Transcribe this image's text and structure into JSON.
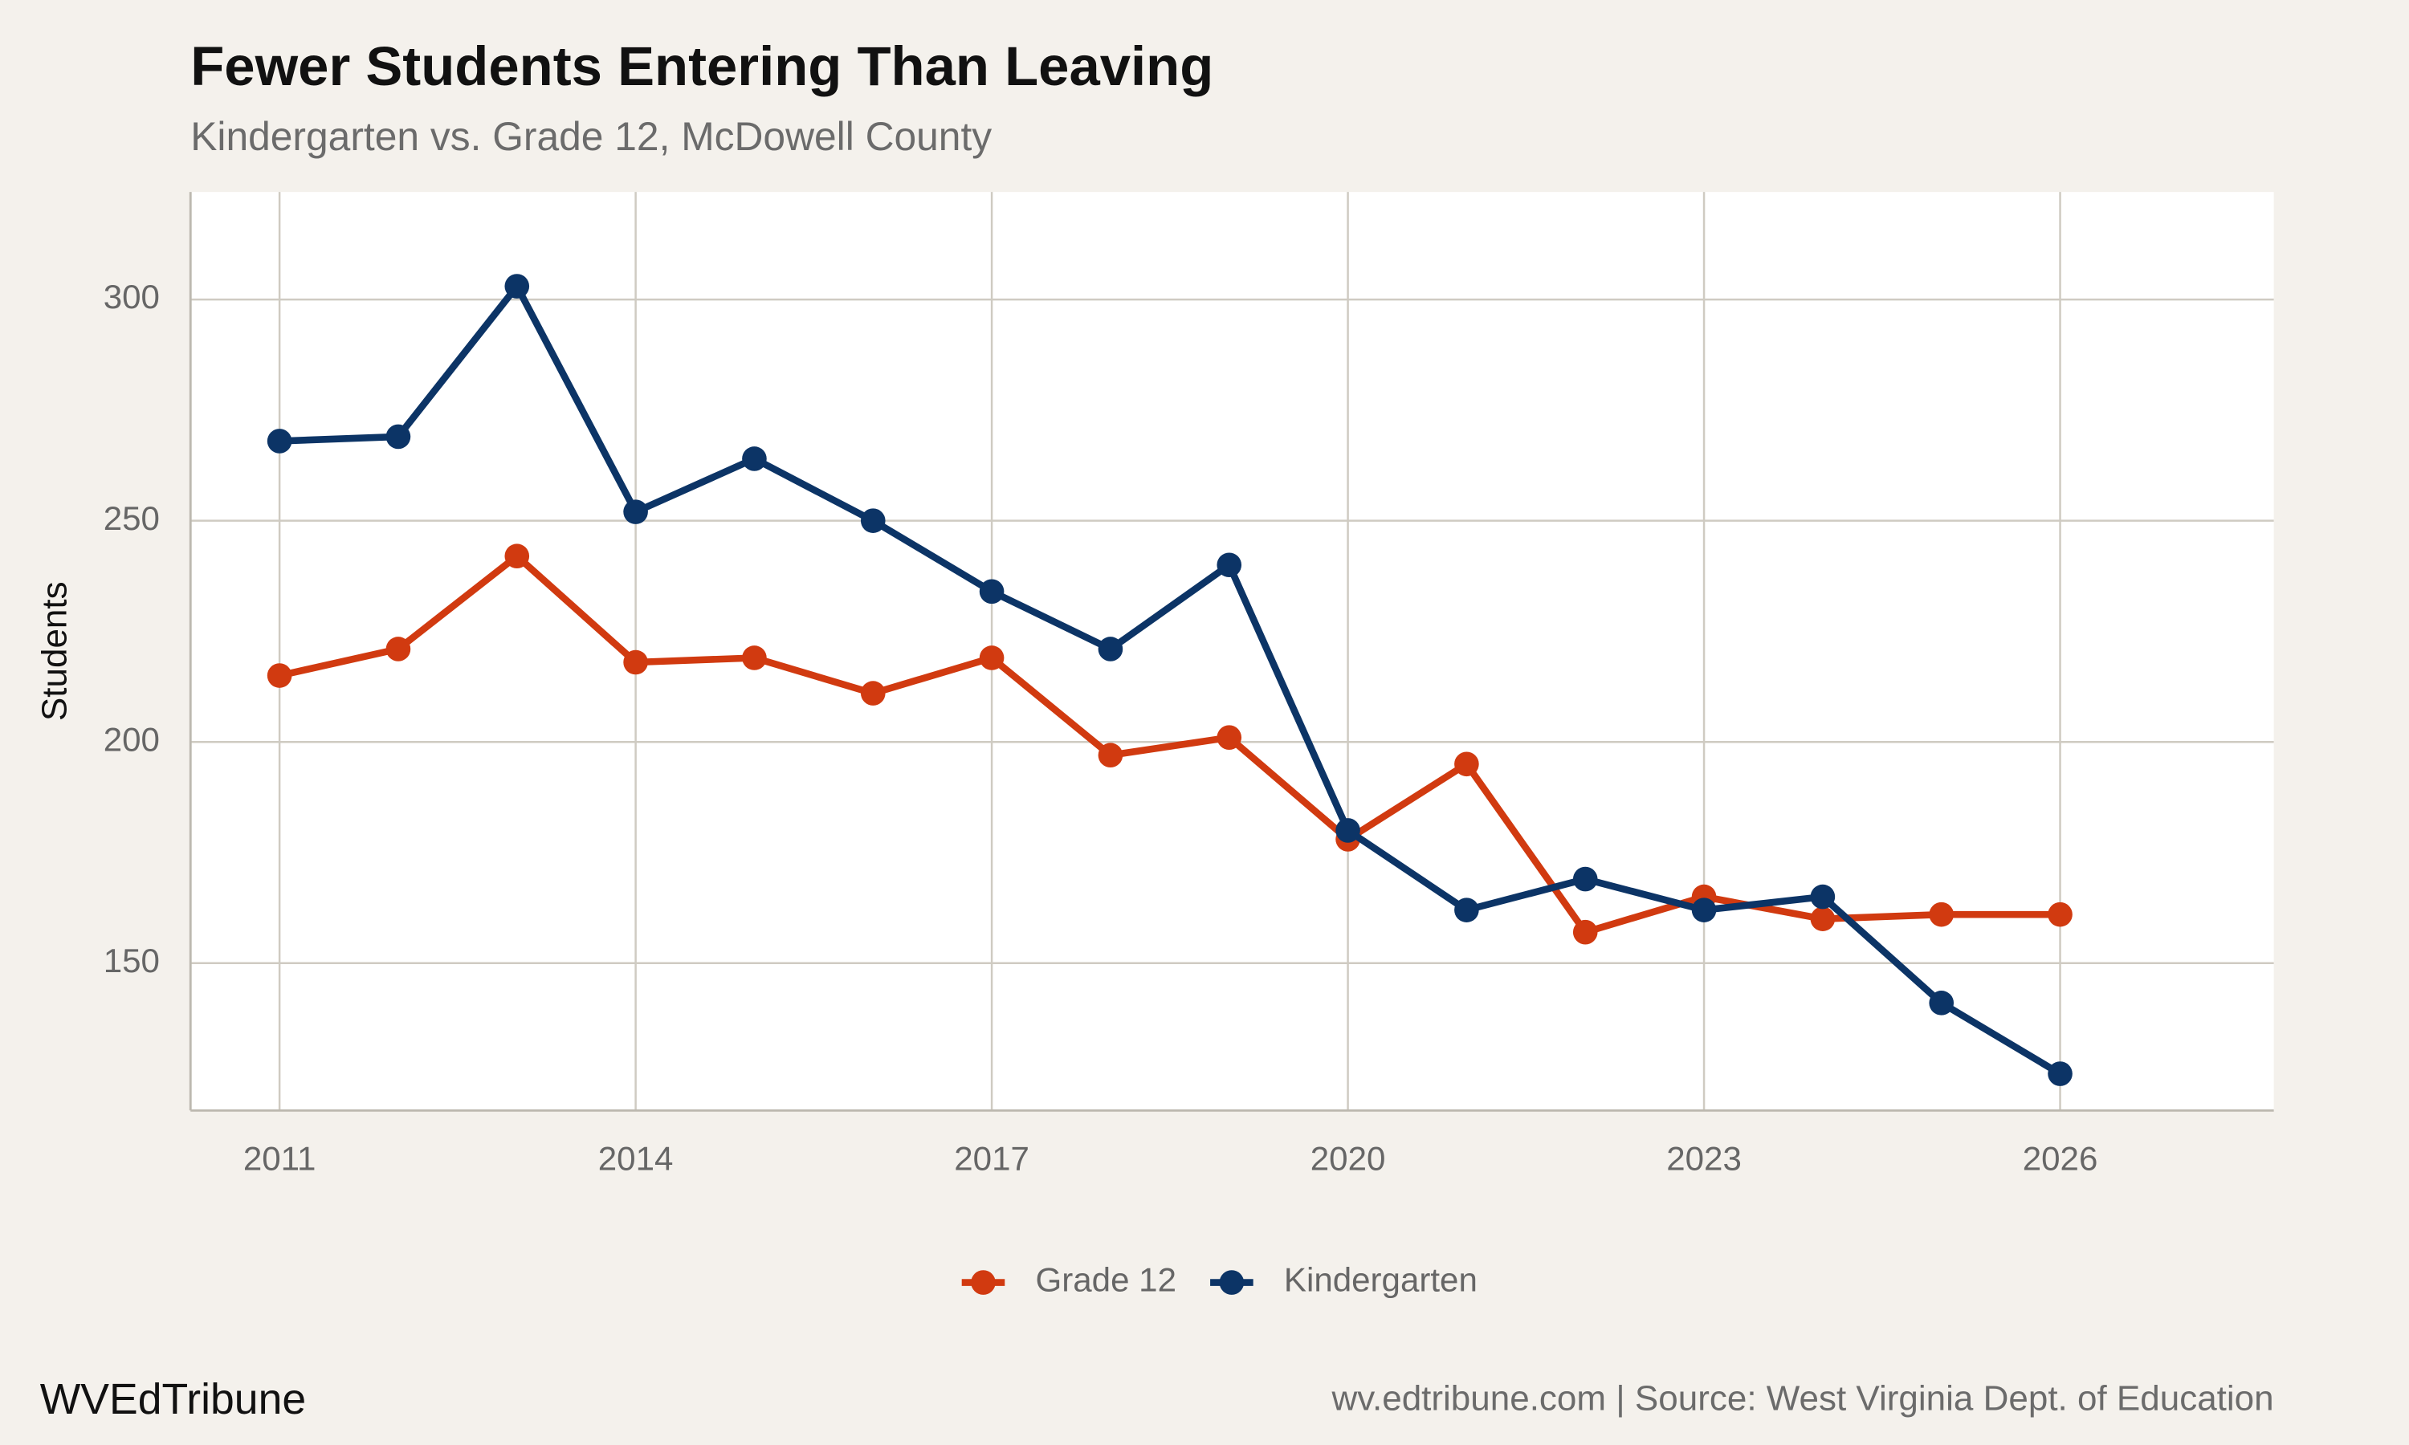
{
  "chart_data": {
    "type": "line",
    "title": "Fewer Students Entering Than Leaving",
    "subtitle": "Kindergarten vs. Grade 12, McDowell County",
    "y_label": "Students",
    "caption_left": "WVEdTribune",
    "caption_right": "wv.edtribune.com | Source: West Virginia Dept. of Education",
    "x": [
      2011,
      2012,
      2013,
      2014,
      2015,
      2016,
      2017,
      2018,
      2019,
      2020,
      2021,
      2022,
      2023,
      2024,
      2025,
      2026
    ],
    "series": [
      {
        "name": "Grade 12",
        "color": "#d13a10",
        "values": [
          215,
          221,
          242,
          218,
          219,
          211,
          219,
          197,
          201,
          178,
          195,
          157,
          165,
          160,
          161,
          161
        ]
      },
      {
        "name": "Kindergarten",
        "color": "#0c3466",
        "values": [
          268,
          269,
          303,
          252,
          264,
          250,
          234,
          221,
          240,
          180,
          162,
          169,
          162,
          165,
          141,
          125
        ]
      }
    ],
    "xlim": [
      2010.25,
      2027.8
    ],
    "xticks": [
      2011,
      2014,
      2017,
      2020,
      2023,
      2026
    ],
    "ylim": [
      116.7,
      324.3
    ],
    "yticks": [
      150,
      200,
      250,
      300
    ],
    "grid": true,
    "legend": "bottom"
  }
}
